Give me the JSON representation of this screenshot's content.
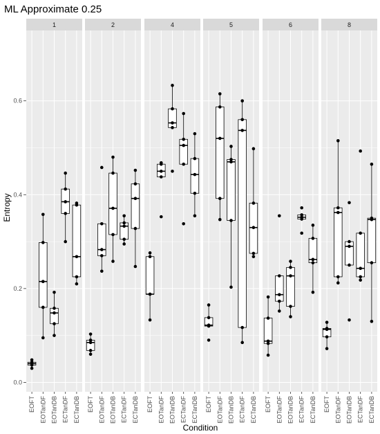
{
  "chart_data": {
    "type": "box",
    "title": "ML Approximate 0.25",
    "xlabel": "Condition",
    "ylabel": "Entropy",
    "ylim": [
      -0.02,
      0.75
    ],
    "yticks": [
      0.0,
      0.2,
      0.4,
      0.6
    ],
    "ytick_labels": [
      "0.0",
      "0.2",
      "0.4",
      "0.6"
    ],
    "categories": [
      "EOFT",
      "EOTanDF",
      "EOTanDB",
      "ECTanDF",
      "ECTanDB"
    ],
    "facets": [
      {
        "label": "1",
        "groups": [
          {
            "condition": "EOFT",
            "points": [
              0.03,
              0.037,
              0.04,
              0.043,
              0.048
            ]
          },
          {
            "condition": "EOTanDF",
            "points": [
              0.095,
              0.16,
              0.215,
              0.298,
              0.358
            ]
          },
          {
            "condition": "EOTanDB",
            "points": [
              0.1,
              0.125,
              0.148,
              0.158,
              0.192
            ]
          },
          {
            "condition": "ECTanDF",
            "points": [
              0.3,
              0.36,
              0.385,
              0.412,
              0.446
            ]
          },
          {
            "condition": "ECTanDB",
            "points": [
              0.21,
              0.225,
              0.268,
              0.378,
              0.382
            ]
          }
        ]
      },
      {
        "label": "2",
        "groups": [
          {
            "condition": "EOFT",
            "points": [
              0.06,
              0.068,
              0.085,
              0.09,
              0.103
            ]
          },
          {
            "condition": "EOTanDF",
            "points": [
              0.237,
              0.27,
              0.283,
              0.338,
              0.458
            ]
          },
          {
            "condition": "EOTanDB",
            "points": [
              0.258,
              0.315,
              0.371,
              0.446,
              0.48
            ]
          },
          {
            "condition": "ECTanDF",
            "points": [
              0.295,
              0.305,
              0.333,
              0.34,
              0.355
            ]
          },
          {
            "condition": "ECTanDB",
            "points": [
              0.247,
              0.328,
              0.392,
              0.423,
              0.452
            ]
          }
        ]
      },
      {
        "label": "4",
        "groups": [
          {
            "condition": "EOFT",
            "points": [
              0.133,
              0.188,
              0.188,
              0.268,
              0.276
            ]
          },
          {
            "condition": "EOTanDF",
            "points": [
              0.353,
              0.438,
              0.45,
              0.465,
              0.468
            ]
          },
          {
            "condition": "EOTanDB",
            "points": [
              0.45,
              0.543,
              0.553,
              0.583,
              0.633
            ]
          },
          {
            "condition": "ECTanDF",
            "points": [
              0.338,
              0.465,
              0.505,
              0.518,
              0.573
            ]
          },
          {
            "condition": "ECTanDB",
            "points": [
              0.355,
              0.403,
              0.443,
              0.477,
              0.53
            ]
          }
        ]
      },
      {
        "label": "5",
        "groups": [
          {
            "condition": "EOFT",
            "points": [
              0.09,
              0.12,
              0.122,
              0.138,
              0.165
            ]
          },
          {
            "condition": "EOTanDF",
            "points": [
              0.347,
              0.392,
              0.52,
              0.587,
              0.615
            ]
          },
          {
            "condition": "EOTanDB",
            "points": [
              0.203,
              0.345,
              0.47,
              0.475,
              0.503
            ]
          },
          {
            "condition": "ECTanDF",
            "points": [
              0.085,
              0.117,
              0.537,
              0.56,
              0.6
            ]
          },
          {
            "condition": "ECTanDB",
            "points": [
              0.268,
              0.275,
              0.33,
              0.382,
              0.498
            ]
          }
        ]
      },
      {
        "label": "6",
        "groups": [
          {
            "condition": "EOFT",
            "points": [
              0.058,
              0.083,
              0.088,
              0.137,
              0.182
            ]
          },
          {
            "condition": "EOTanDF",
            "points": [
              0.152,
              0.173,
              0.187,
              0.227,
              0.355
            ]
          },
          {
            "condition": "EOTanDB",
            "points": [
              0.14,
              0.162,
              0.227,
              0.245,
              0.258
            ]
          },
          {
            "condition": "ECTanDF",
            "points": [
              0.318,
              0.348,
              0.352,
              0.357,
              0.372
            ]
          },
          {
            "condition": "ECTanDB",
            "points": [
              0.192,
              0.255,
              0.262,
              0.307,
              0.335
            ]
          }
        ]
      },
      {
        "label": "8",
        "groups": [
          {
            "condition": "EOFT",
            "points": [
              0.072,
              0.097,
              0.113,
              0.115,
              0.128
            ]
          },
          {
            "condition": "EOTanDF",
            "points": [
              0.212,
              0.225,
              0.362,
              0.372,
              0.515
            ]
          },
          {
            "condition": "EOTanDB",
            "points": [
              0.133,
              0.25,
              0.29,
              0.3,
              0.383
            ]
          },
          {
            "condition": "ECTanDF",
            "points": [
              0.218,
              0.225,
              0.243,
              0.318,
              0.493
            ]
          },
          {
            "condition": "ECTanDB",
            "points": [
              0.13,
              0.255,
              0.347,
              0.35,
              0.465
            ]
          }
        ]
      }
    ]
  }
}
